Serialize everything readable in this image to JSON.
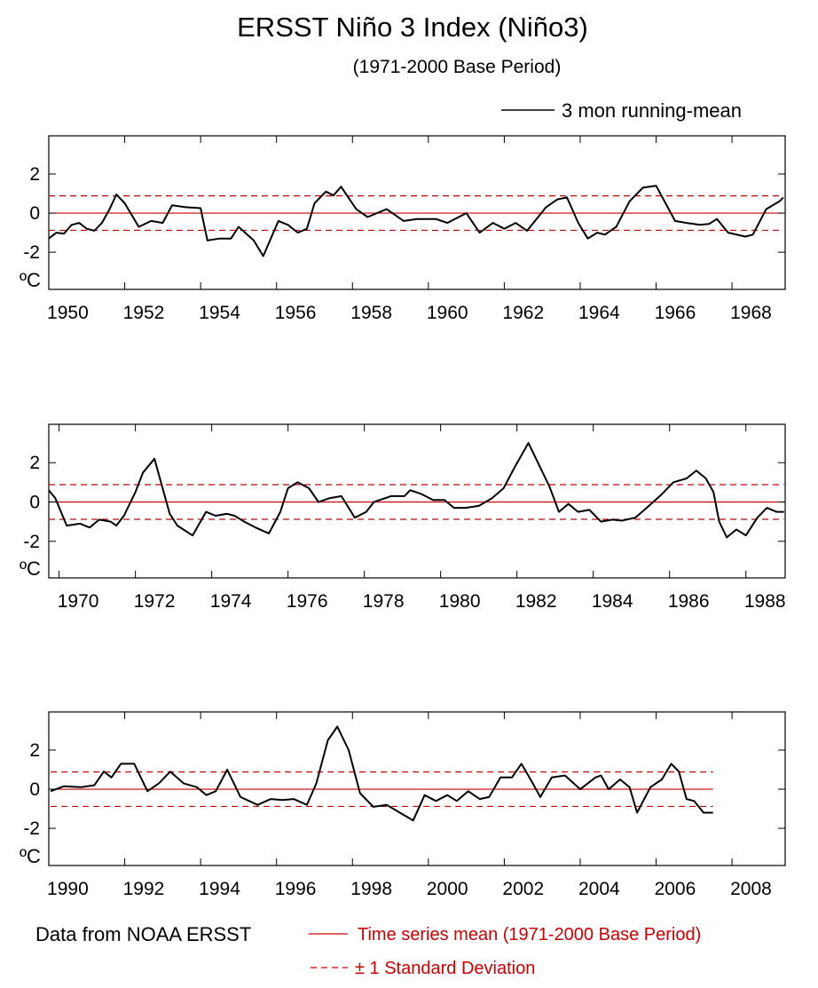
{
  "title": "ERSST Niño 3 Index (Niño3)",
  "subtitle": "(1971-2000 Base Period)",
  "legend_label": "3 mon running-mean",
  "y_unit": "ºC",
  "source": "Data from NOAA ERSST",
  "mean_label": "Time series mean (1971-2000 Base Period)",
  "std_label": "± 1 Standard Deviation",
  "chart_data": [
    {
      "type": "line",
      "color": "#000000",
      "ref_color": "#cc0000",
      "mean": 0,
      "std": 0.88,
      "xlim": [
        1950.0,
        1969.4
      ],
      "ylim": [
        -3.9,
        3.95
      ],
      "xticks": [
        1950,
        1952,
        1954,
        1956,
        1958,
        1960,
        1962,
        1964,
        1966,
        1968
      ],
      "yticks": [
        -2,
        0,
        2
      ],
      "x": [
        1950.0,
        1950.2,
        1950.4,
        1950.6,
        1950.8,
        1951.0,
        1951.2,
        1951.4,
        1951.6,
        1951.78,
        1952.0,
        1952.37,
        1952.7,
        1953.0,
        1953.25,
        1953.6,
        1954.0,
        1954.18,
        1954.5,
        1954.8,
        1955.0,
        1955.4,
        1955.65,
        1956.05,
        1956.3,
        1956.56,
        1956.8,
        1957.0,
        1957.3,
        1957.5,
        1957.7,
        1958.1,
        1958.4,
        1958.9,
        1959.35,
        1959.7,
        1960.2,
        1960.5,
        1961.0,
        1961.35,
        1961.7,
        1962.0,
        1962.3,
        1962.6,
        1963.1,
        1963.4,
        1963.65,
        1963.95,
        1964.2,
        1964.45,
        1964.65,
        1964.95,
        1965.3,
        1965.65,
        1966.0,
        1966.25,
        1966.5,
        1966.8,
        1967.15,
        1967.4,
        1967.6,
        1967.9,
        1968.35,
        1968.55,
        1968.9,
        1969.25,
        1969.35
      ],
      "values": [
        -1.3,
        -1.0,
        -1.05,
        -0.6,
        -0.5,
        -0.8,
        -0.9,
        -0.5,
        0.2,
        0.95,
        0.5,
        -0.7,
        -0.4,
        -0.5,
        0.4,
        0.3,
        0.25,
        -1.4,
        -1.3,
        -1.3,
        -0.7,
        -1.4,
        -2.2,
        -0.4,
        -0.6,
        -1.0,
        -0.8,
        0.5,
        1.1,
        0.9,
        1.35,
        0.2,
        -0.2,
        0.2,
        -0.4,
        -0.3,
        -0.3,
        -0.5,
        0.0,
        -1.0,
        -0.5,
        -0.8,
        -0.5,
        -0.9,
        0.3,
        0.7,
        0.8,
        -0.5,
        -1.3,
        -1.0,
        -1.1,
        -0.7,
        0.6,
        1.3,
        1.4,
        0.5,
        -0.4,
        -0.5,
        -0.6,
        -0.55,
        -0.3,
        -1.0,
        -1.2,
        -1.1,
        0.2,
        0.6,
        0.8
      ]
    },
    {
      "type": "line",
      "color": "#000000",
      "ref_color": "#cc0000",
      "mean": 0,
      "std": 0.88,
      "xlim": [
        1969.73,
        1989.03
      ],
      "ylim": [
        -3.86,
        3.95
      ],
      "xticks": [
        1970,
        1972,
        1974,
        1976,
        1978,
        1980,
        1982,
        1984,
        1986,
        1988
      ],
      "yticks": [
        -2,
        0,
        2
      ],
      "x": [
        1969.73,
        1969.9,
        1970.2,
        1970.55,
        1970.8,
        1971.05,
        1971.35,
        1971.5,
        1971.7,
        1972.0,
        1972.2,
        1972.5,
        1972.9,
        1973.1,
        1973.5,
        1973.85,
        1974.1,
        1974.4,
        1974.6,
        1974.85,
        1975.15,
        1975.5,
        1975.8,
        1976.0,
        1976.25,
        1976.55,
        1976.8,
        1977.1,
        1977.4,
        1977.75,
        1978.05,
        1978.25,
        1978.7,
        1979.05,
        1979.2,
        1979.5,
        1979.8,
        1980.1,
        1980.35,
        1980.65,
        1981.0,
        1981.35,
        1981.65,
        1981.95,
        1982.3,
        1982.55,
        1982.85,
        1983.1,
        1983.35,
        1983.6,
        1983.9,
        1984.2,
        1984.5,
        1984.75,
        1985.1,
        1985.4,
        1985.8,
        1986.1,
        1986.45,
        1986.7,
        1986.95,
        1987.15,
        1987.3,
        1987.5,
        1987.75,
        1988.0,
        1988.3,
        1988.55,
        1988.8,
        1989.0
      ],
      "values": [
        0.6,
        0.2,
        -1.2,
        -1.1,
        -1.3,
        -0.9,
        -1.0,
        -1.2,
        -0.7,
        0.5,
        1.5,
        2.2,
        -0.6,
        -1.2,
        -1.7,
        -0.5,
        -0.7,
        -0.6,
        -0.7,
        -1.0,
        -1.3,
        -1.6,
        -0.5,
        0.7,
        1.0,
        0.7,
        0.0,
        0.2,
        0.3,
        -0.8,
        -0.5,
        0.0,
        0.3,
        0.3,
        0.6,
        0.4,
        0.1,
        0.1,
        -0.3,
        -0.3,
        -0.2,
        0.2,
        0.7,
        1.8,
        3.0,
        2.0,
        0.8,
        -0.5,
        -0.1,
        -0.5,
        -0.4,
        -1.0,
        -0.9,
        -0.95,
        -0.8,
        -0.3,
        0.4,
        1.0,
        1.2,
        1.6,
        1.2,
        0.5,
        -1.0,
        -1.8,
        -1.4,
        -1.7,
        -0.8,
        -0.3,
        -0.5,
        -0.5
      ]
    },
    {
      "type": "line",
      "color": "#000000",
      "ref_color": "#cc0000",
      "mean": 0,
      "std": 0.88,
      "xlim": [
        1990.0,
        2009.4
      ],
      "ylim": [
        -3.9,
        3.95
      ],
      "xticks": [
        1990,
        1992,
        1994,
        1996,
        1998,
        2000,
        2002,
        2004,
        2006,
        2008
      ],
      "yticks": [
        -2,
        0,
        2
      ],
      "x": [
        1990.05,
        1990.4,
        1990.85,
        1991.2,
        1991.45,
        1991.65,
        1991.9,
        1992.25,
        1992.6,
        1992.9,
        1993.2,
        1993.55,
        1993.9,
        1994.15,
        1994.4,
        1994.7,
        1995.05,
        1995.5,
        1995.85,
        1996.15,
        1996.45,
        1996.8,
        1997.05,
        1997.35,
        1997.6,
        1997.9,
        1998.2,
        1998.55,
        1998.9,
        1999.25,
        1999.6,
        1999.9,
        2000.2,
        2000.5,
        2000.75,
        2001.05,
        2001.35,
        2001.6,
        2001.9,
        2002.2,
        2002.45,
        2002.75,
        2002.95,
        2003.25,
        2003.6,
        2004.0,
        2004.4,
        2004.55,
        2004.75,
        2005.05,
        2005.3,
        2005.5,
        2005.85,
        2006.15,
        2006.4,
        2006.6,
        2006.8,
        2007.0,
        2007.25,
        2007.5
      ],
      "values": [
        -0.1,
        0.15,
        0.1,
        0.2,
        0.9,
        0.6,
        1.3,
        1.3,
        -0.1,
        0.3,
        0.9,
        0.3,
        0.1,
        -0.3,
        -0.1,
        1.0,
        -0.4,
        -0.8,
        -0.5,
        -0.55,
        -0.5,
        -0.8,
        0.3,
        2.5,
        3.2,
        2.0,
        -0.2,
        -0.9,
        -0.8,
        -1.2,
        -1.6,
        -0.3,
        -0.6,
        -0.3,
        -0.6,
        -0.1,
        -0.5,
        -0.4,
        0.6,
        0.6,
        1.3,
        0.3,
        -0.4,
        0.6,
        0.7,
        0.0,
        0.6,
        0.7,
        0.0,
        0.5,
        0.1,
        -1.2,
        0.1,
        0.5,
        1.3,
        0.9,
        -0.5,
        -0.6,
        -1.2,
        -1.2
      ]
    }
  ]
}
